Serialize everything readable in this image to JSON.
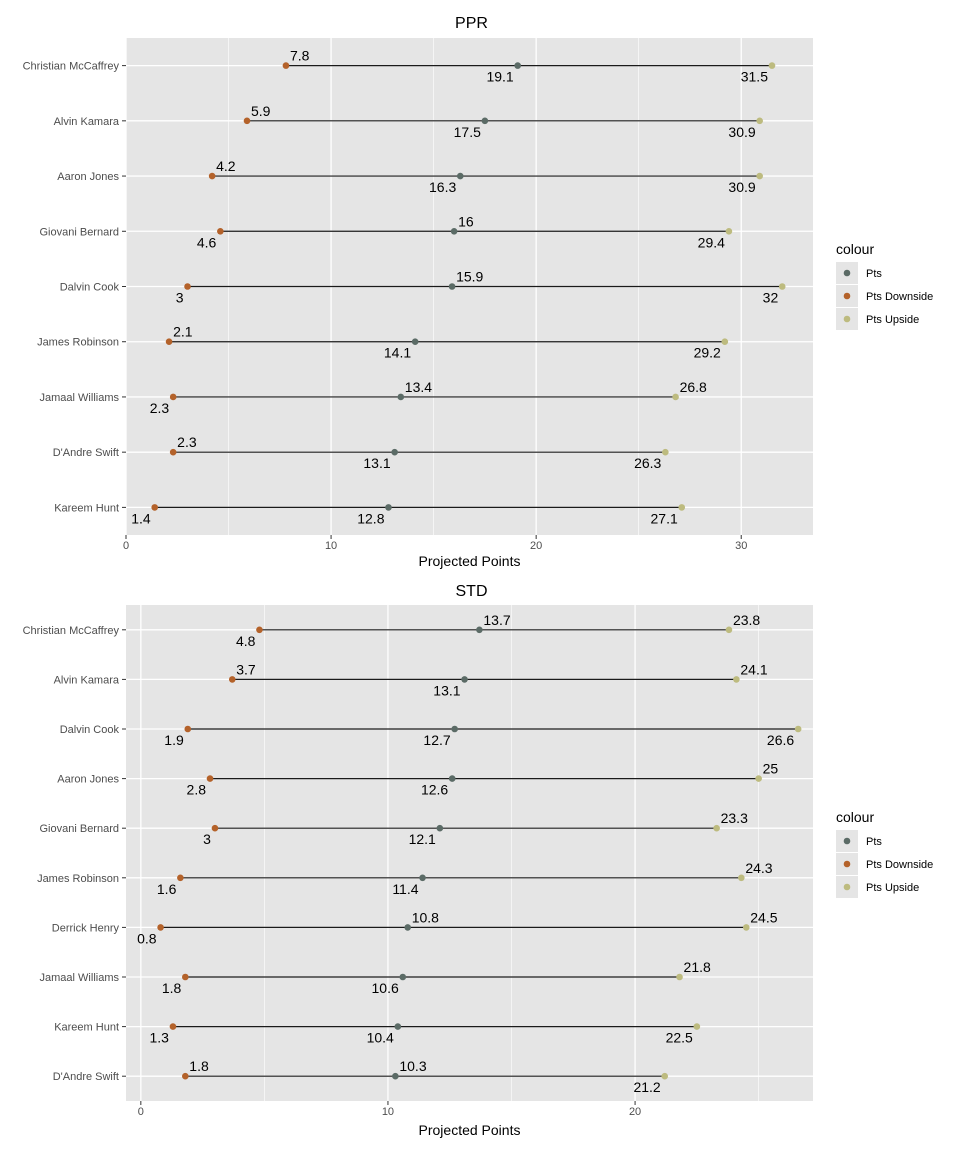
{
  "theme": {
    "panel_bg": "#e5e5e5",
    "grid_color": "#ffffff",
    "segment_color": "#1a1a1a",
    "tick_label_color": "#4d4d4d"
  },
  "legend": {
    "title": "colour",
    "items": [
      {
        "name": "Pts",
        "color": "#5b6b66"
      },
      {
        "name": "Pts Downside",
        "color": "#b4622a"
      },
      {
        "name": "Pts Upside",
        "color": "#bdbb7f"
      }
    ]
  },
  "chart_data": [
    {
      "type": "dumbbell",
      "title": "PPR",
      "xlabel": "Projected Points",
      "ylabel": "",
      "xlim": [
        0,
        33.5
      ],
      "xticks": [
        0,
        10,
        20,
        30
      ],
      "grid": true,
      "legend_position": "right",
      "categories": [
        "Christian McCaffrey",
        "Alvin Kamara",
        "Aaron Jones",
        "Giovani Bernard",
        "Dalvin Cook",
        "James Robinson",
        "Jamaal Williams",
        "D'Andre Swift",
        "Kareem Hunt"
      ],
      "series": [
        {
          "name": "Pts Downside",
          "values": [
            7.8,
            5.9,
            4.2,
            4.6,
            3,
            2.1,
            2.3,
            2.3,
            1.4
          ],
          "label_side": [
            "above",
            "above",
            "above",
            "below",
            "below",
            "above",
            "below",
            "above",
            "below"
          ]
        },
        {
          "name": "Pts",
          "values": [
            19.1,
            17.5,
            16.3,
            16,
            15.9,
            14.1,
            13.4,
            13.1,
            12.8
          ],
          "label_side": [
            "below",
            "below",
            "below",
            "above",
            "above",
            "below",
            "above",
            "below",
            "below"
          ]
        },
        {
          "name": "Pts Upside",
          "values": [
            31.5,
            30.9,
            30.9,
            29.4,
            32,
            29.2,
            26.8,
            26.3,
            27.1
          ],
          "label_side": [
            "below",
            "below",
            "below",
            "below",
            "below",
            "below",
            "above",
            "below",
            "below"
          ]
        }
      ]
    },
    {
      "type": "dumbbell",
      "title": "STD",
      "xlabel": "Projected Points",
      "ylabel": "",
      "xlim": [
        -0.6,
        27.2
      ],
      "xticks": [
        0,
        10,
        20
      ],
      "grid": true,
      "legend_position": "right",
      "categories": [
        "Christian McCaffrey",
        "Alvin Kamara",
        "Dalvin Cook",
        "Aaron Jones",
        "Giovani Bernard",
        "James Robinson",
        "Derrick Henry",
        "Jamaal Williams",
        "Kareem Hunt",
        "D'Andre Swift"
      ],
      "series": [
        {
          "name": "Pts Downside",
          "values": [
            4.8,
            3.7,
            1.9,
            2.8,
            3,
            1.6,
            0.8,
            1.8,
            1.3,
            1.8
          ],
          "label_side": [
            "below",
            "above",
            "below",
            "below",
            "below",
            "below",
            "below",
            "below",
            "below",
            "above"
          ]
        },
        {
          "name": "Pts",
          "values": [
            13.7,
            13.1,
            12.7,
            12.6,
            12.1,
            11.4,
            10.8,
            10.6,
            10.4,
            10.3
          ],
          "label_side": [
            "above",
            "below",
            "below",
            "below",
            "below",
            "below",
            "above",
            "below",
            "below",
            "above"
          ]
        },
        {
          "name": "Pts Upside",
          "values": [
            23.8,
            24.1,
            26.6,
            25,
            23.3,
            24.3,
            24.5,
            21.8,
            22.5,
            21.2
          ],
          "label_side": [
            "above",
            "above",
            "below",
            "above",
            "above",
            "above",
            "above",
            "above",
            "below",
            "below"
          ]
        }
      ]
    }
  ]
}
